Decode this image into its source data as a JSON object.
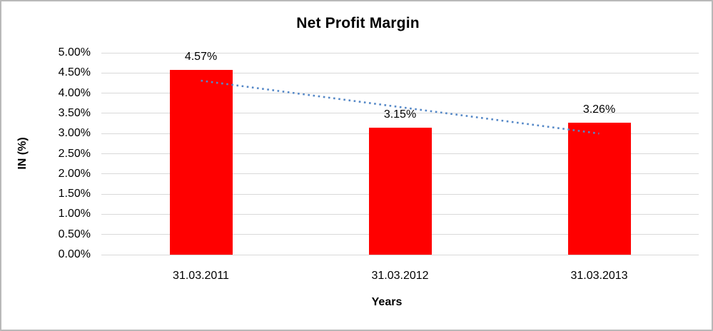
{
  "window": {
    "background_color": "#ffffff",
    "border_color": "#b9b9b9"
  },
  "chart_data": {
    "type": "bar",
    "title": "Net Profit Margin",
    "xlabel": "Years",
    "ylabel": "IN (%)",
    "categories": [
      "31.03.2011",
      "31.03.2012",
      "31.03.2013"
    ],
    "values": [
      4.57,
      3.15,
      3.26
    ],
    "data_labels": [
      "4.57%",
      "3.15%",
      "3.26%"
    ],
    "ylim": [
      0,
      5
    ],
    "ytick_step": 0.5,
    "ytick_labels": [
      "0.00%",
      "0.50%",
      "1.00%",
      "1.50%",
      "2.00%",
      "2.50%",
      "3.00%",
      "3.50%",
      "4.00%",
      "4.50%",
      "5.00%"
    ],
    "grid": true,
    "legend": "none",
    "bar_color": "#ff0000",
    "gridline_color": "#d9d9d9",
    "text_color": "#000000",
    "trendline": {
      "type": "linear",
      "style": "dotted",
      "color": "#5588c7",
      "start_value": 4.31,
      "end_value": 3.0
    }
  }
}
